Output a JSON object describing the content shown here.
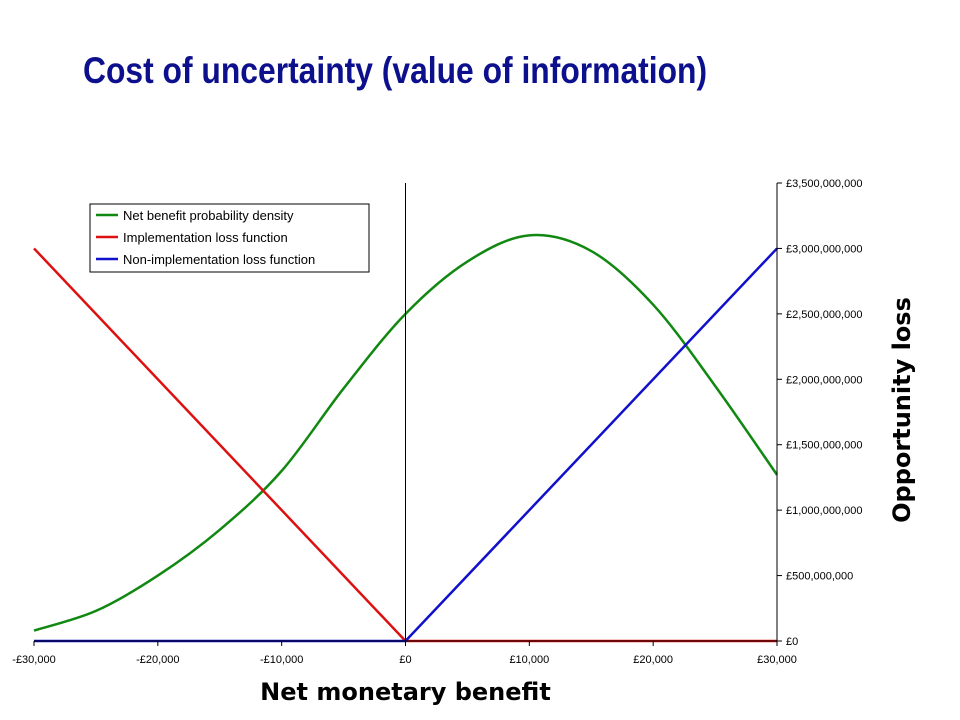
{
  "title": "Cost of uncertainty (value of information)",
  "chart_data": {
    "type": "line",
    "xlabel": "Net monetary benefit",
    "ylabel": "Opportunity loss",
    "xlim": [
      -30000,
      30000
    ],
    "ylim": [
      0,
      3500000000
    ],
    "x_ticks": [
      "-£30,000",
      "-£20,000",
      "-£10,000",
      "£0",
      "£10,000",
      "£20,000",
      "£30,000"
    ],
    "y_ticks": [
      "£0",
      "£500,000,000",
      "£1,000,000,000",
      "£1,500,000,000",
      "£2,000,000,000",
      "£2,500,000,000",
      "£3,000,000,000",
      "£3,500,000,000"
    ],
    "grid": false,
    "legend_position": "top-left",
    "series": [
      {
        "name": "Net benefit probability density",
        "color": "#118811",
        "x": [
          -30000,
          -25000,
          -20000,
          -15000,
          -10000,
          -5000,
          0,
          5000,
          10000,
          15000,
          20000,
          25000,
          30000
        ],
        "values": [
          80000000,
          230000000,
          500000000,
          850000000,
          1300000000,
          1930000000,
          2500000000,
          2900000000,
          3100000000,
          2980000000,
          2570000000,
          1950000000,
          1270000000
        ]
      },
      {
        "name": "Implementation loss function",
        "color": "#dd1111",
        "x": [
          -30000,
          0,
          30000
        ],
        "values": [
          3000000000,
          0,
          0
        ]
      },
      {
        "name": "Non-implementation loss function",
        "color": "#1111cc",
        "x": [
          -30000,
          0,
          30000
        ],
        "values": [
          0,
          0,
          3000000000
        ]
      }
    ]
  }
}
